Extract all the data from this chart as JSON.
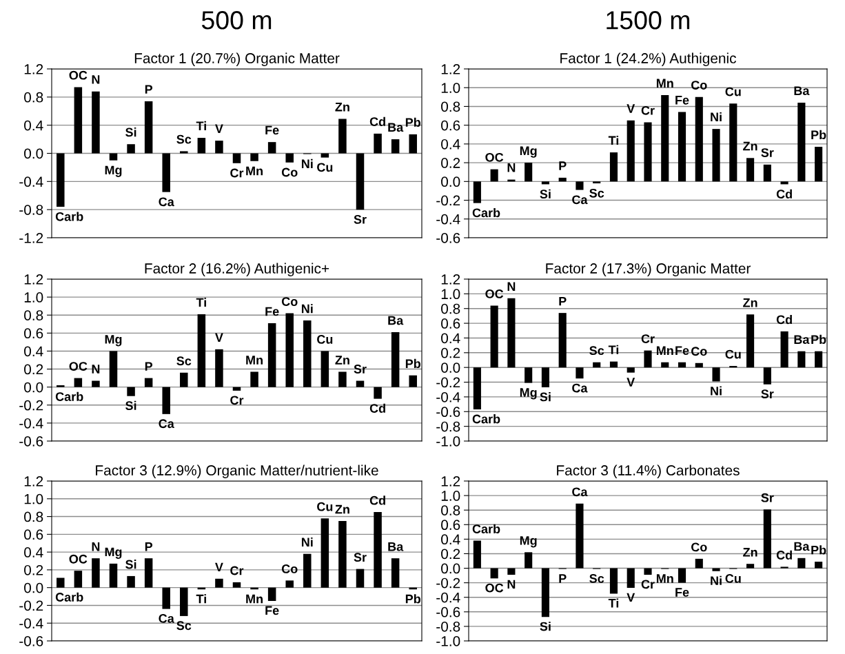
{
  "chart_data": [
    {
      "type": "bar",
      "title": "Factor 1 (20.7%) Organic Matter",
      "annotations": [
        "500 m"
      ],
      "categories": [
        "Carb",
        "OC",
        "N",
        "Mg",
        "Si",
        "P",
        "Ca",
        "Sc",
        "Ti",
        "V",
        "Cr",
        "Mn",
        "Fe",
        "Co",
        "Ni",
        "Cu",
        "Zn",
        "Sr",
        "Cd",
        "Ba",
        "Pb"
      ],
      "values": [
        -0.76,
        0.94,
        0.88,
        -0.1,
        0.13,
        0.74,
        -0.55,
        0.03,
        0.22,
        0.18,
        -0.14,
        -0.11,
        0.16,
        -0.13,
        -0.01,
        -0.06,
        0.49,
        -0.8,
        0.28,
        0.2,
        0.27
      ],
      "color": "#000000",
      "ylim": [
        -1.2,
        1.2
      ],
      "yticks": [
        {
          "value": -1.2,
          "label": "-1.2"
        },
        {
          "value": -0.8,
          "label": "-0.8"
        },
        {
          "value": -0.4,
          "label": "-0.4"
        },
        {
          "value": 0,
          "label": "0.0"
        },
        {
          "value": 0.4,
          "label": "0.4"
        },
        {
          "value": 0.8,
          "label": "0.8"
        },
        {
          "value": 1.2,
          "label": "1.2"
        }
      ],
      "grid": "y",
      "tick_labels": "y"
    },
    {
      "type": "bar",
      "title": "Factor 1 (24.2%) Authigenic",
      "annotations": [
        "1500 m"
      ],
      "categories": [
        "Carb",
        "OC",
        "N",
        "Mg",
        "Si",
        "P",
        "Ca",
        "Sc",
        "Ti",
        "V",
        "Cr",
        "Mn",
        "Fe",
        "Co",
        "Ni",
        "Cu",
        "Zn",
        "Sr",
        "Cd",
        "Ba",
        "Pb"
      ],
      "values": [
        -0.23,
        0.13,
        0.02,
        0.2,
        -0.03,
        0.04,
        -0.09,
        -0.02,
        0.31,
        0.65,
        0.63,
        0.92,
        0.74,
        0.9,
        0.56,
        0.83,
        0.25,
        0.18,
        -0.03,
        0.84,
        0.37
      ],
      "color": "#000000",
      "ylim": [
        -0.6,
        1.2
      ],
      "yticks": [
        {
          "value": -0.6,
          "label": "-0.6"
        },
        {
          "value": -0.4,
          "label": "-0.4"
        },
        {
          "value": -0.2,
          "label": "-0.2"
        },
        {
          "value": 0,
          "label": "0.0"
        },
        {
          "value": 0.2,
          "label": "0.2"
        },
        {
          "value": 0.4,
          "label": "0.4"
        },
        {
          "value": 0.6,
          "label": "0.6"
        },
        {
          "value": 0.8,
          "label": "0.8"
        },
        {
          "value": 1.0,
          "label": "1.0"
        },
        {
          "value": 1.2,
          "label": "1.2"
        }
      ],
      "grid": "y",
      "tick_labels": "y"
    },
    {
      "type": "bar",
      "title": "Factor 2 (16.2%) Authigenic+",
      "categories": [
        "Carb",
        "OC",
        "N",
        "Mg",
        "Si",
        "P",
        "Ca",
        "Sc",
        "Ti",
        "V",
        "Cr",
        "Mn",
        "Fe",
        "Co",
        "Ni",
        "Cu",
        "Zn",
        "Sr",
        "Cd",
        "Ba",
        "Pb"
      ],
      "values": [
        0.02,
        0.1,
        0.07,
        0.4,
        -0.1,
        0.1,
        -0.3,
        0.16,
        0.81,
        0.42,
        -0.04,
        0.17,
        0.71,
        0.82,
        0.74,
        0.4,
        0.17,
        0.07,
        -0.13,
        0.61,
        0.13
      ],
      "color": "#000000",
      "ylim": [
        -0.6,
        1.2
      ],
      "yticks": [
        {
          "value": -0.6,
          "label": "-0.6"
        },
        {
          "value": -0.4,
          "label": "-0.4"
        },
        {
          "value": -0.2,
          "label": "-0.2"
        },
        {
          "value": 0,
          "label": "0.0"
        },
        {
          "value": 0.2,
          "label": "0.2"
        },
        {
          "value": 0.4,
          "label": "0.4"
        },
        {
          "value": 0.6,
          "label": "0.6"
        },
        {
          "value": 0.8,
          "label": "0.8"
        },
        {
          "value": 1.0,
          "label": "1.0"
        },
        {
          "value": 1.2,
          "label": "1.2"
        }
      ],
      "grid": "y",
      "tick_labels": "y"
    },
    {
      "type": "bar",
      "title": "Factor 2 (17.3%) Organic Matter",
      "categories": [
        "Carb",
        "OC",
        "N",
        "Mg",
        "Si",
        "P",
        "Ca",
        "Sc",
        "Ti",
        "V",
        "Cr",
        "Mn",
        "Fe",
        "Co",
        "Ni",
        "Cu",
        "Zn",
        "Sr",
        "Cd",
        "Ba",
        "Pb"
      ],
      "values": [
        -0.57,
        0.84,
        0.94,
        -0.21,
        -0.27,
        0.74,
        -0.15,
        0.07,
        0.08,
        -0.07,
        0.23,
        0.07,
        0.07,
        0.06,
        -0.19,
        0.02,
        0.72,
        -0.23,
        0.49,
        0.22,
        0.22
      ],
      "color": "#000000",
      "ylim": [
        -1.0,
        1.2
      ],
      "yticks": [
        {
          "value": -1.0,
          "label": "-1.0"
        },
        {
          "value": -0.8,
          "label": "-0.8"
        },
        {
          "value": -0.6,
          "label": "-0.6"
        },
        {
          "value": -0.4,
          "label": "-0.4"
        },
        {
          "value": -0.2,
          "label": "-0.2"
        },
        {
          "value": 0,
          "label": "0.0"
        },
        {
          "value": 0.2,
          "label": "0.2"
        },
        {
          "value": 0.4,
          "label": "0.4"
        },
        {
          "value": 0.6,
          "label": "0.6"
        },
        {
          "value": 0.8,
          "label": "0.8"
        },
        {
          "value": 1.0,
          "label": "1.0"
        },
        {
          "value": 1.2,
          "label": "1.2"
        }
      ],
      "grid": "y",
      "tick_labels": "y"
    },
    {
      "type": "bar",
      "title": "Factor 3 (12.9%) Organic Matter/nutrient-like",
      "categories": [
        "Carb",
        "OC",
        "N",
        "Mg",
        "Si",
        "P",
        "Ca",
        "Sc",
        "Ti",
        "V",
        "Cr",
        "Mn",
        "Fe",
        "Co",
        "Ni",
        "Cu",
        "Zn",
        "Sr",
        "Cd",
        "Ba",
        "Pb"
      ],
      "values": [
        0.11,
        0.19,
        0.33,
        0.27,
        0.13,
        0.33,
        -0.24,
        -0.32,
        -0.02,
        0.1,
        0.06,
        -0.02,
        -0.15,
        0.08,
        0.38,
        0.78,
        0.75,
        0.21,
        0.85,
        0.33,
        -0.02
      ],
      "color": "#000000",
      "ylim": [
        -0.6,
        1.2
      ],
      "yticks": [
        {
          "value": -0.6,
          "label": "-0.6"
        },
        {
          "value": -0.4,
          "label": "-0.4"
        },
        {
          "value": -0.2,
          "label": "-0.2"
        },
        {
          "value": 0,
          "label": "0.0"
        },
        {
          "value": 0.2,
          "label": "0.2"
        },
        {
          "value": 0.4,
          "label": "0.4"
        },
        {
          "value": 0.6,
          "label": "0.6"
        },
        {
          "value": 0.8,
          "label": "0.8"
        },
        {
          "value": 1.0,
          "label": "1.0"
        },
        {
          "value": 1.2,
          "label": "1.2"
        }
      ],
      "grid": "y",
      "tick_labels": "y"
    },
    {
      "type": "bar",
      "title": "Factor 3 (11.4%) Carbonates",
      "categories": [
        "Carb",
        "OC",
        "N",
        "Mg",
        "Si",
        "P",
        "Ca",
        "Sc",
        "Ti",
        "V",
        "Cr",
        "Mn",
        "Fe",
        "Co",
        "Ni",
        "Cu",
        "Zn",
        "Sr",
        "Cd",
        "Ba",
        "Pb"
      ],
      "values": [
        0.38,
        -0.14,
        -0.09,
        0.22,
        -0.67,
        -0.01,
        0.89,
        -0.01,
        -0.35,
        -0.27,
        -0.09,
        -0.01,
        -0.2,
        0.13,
        -0.04,
        -0.01,
        0.06,
        0.81,
        0.02,
        0.14,
        0.09
      ],
      "color": "#000000",
      "ylim": [
        -1.0,
        1.2
      ],
      "yticks": [
        {
          "value": -1.0,
          "label": "-1.0"
        },
        {
          "value": -0.8,
          "label": "-0.8"
        },
        {
          "value": -0.6,
          "label": "-0.6"
        },
        {
          "value": -0.4,
          "label": "-0.4"
        },
        {
          "value": -0.2,
          "label": "-0.2"
        },
        {
          "value": 0,
          "label": "0.0"
        },
        {
          "value": 0.2,
          "label": "0.2"
        },
        {
          "value": 0.4,
          "label": "0.4"
        },
        {
          "value": 0.6,
          "label": "0.6"
        },
        {
          "value": 0.8,
          "label": "0.8"
        },
        {
          "value": 1.0,
          "label": "1.0"
        },
        {
          "value": 1.2,
          "label": "1.2"
        }
      ],
      "grid": "y",
      "tick_labels": "y"
    }
  ]
}
